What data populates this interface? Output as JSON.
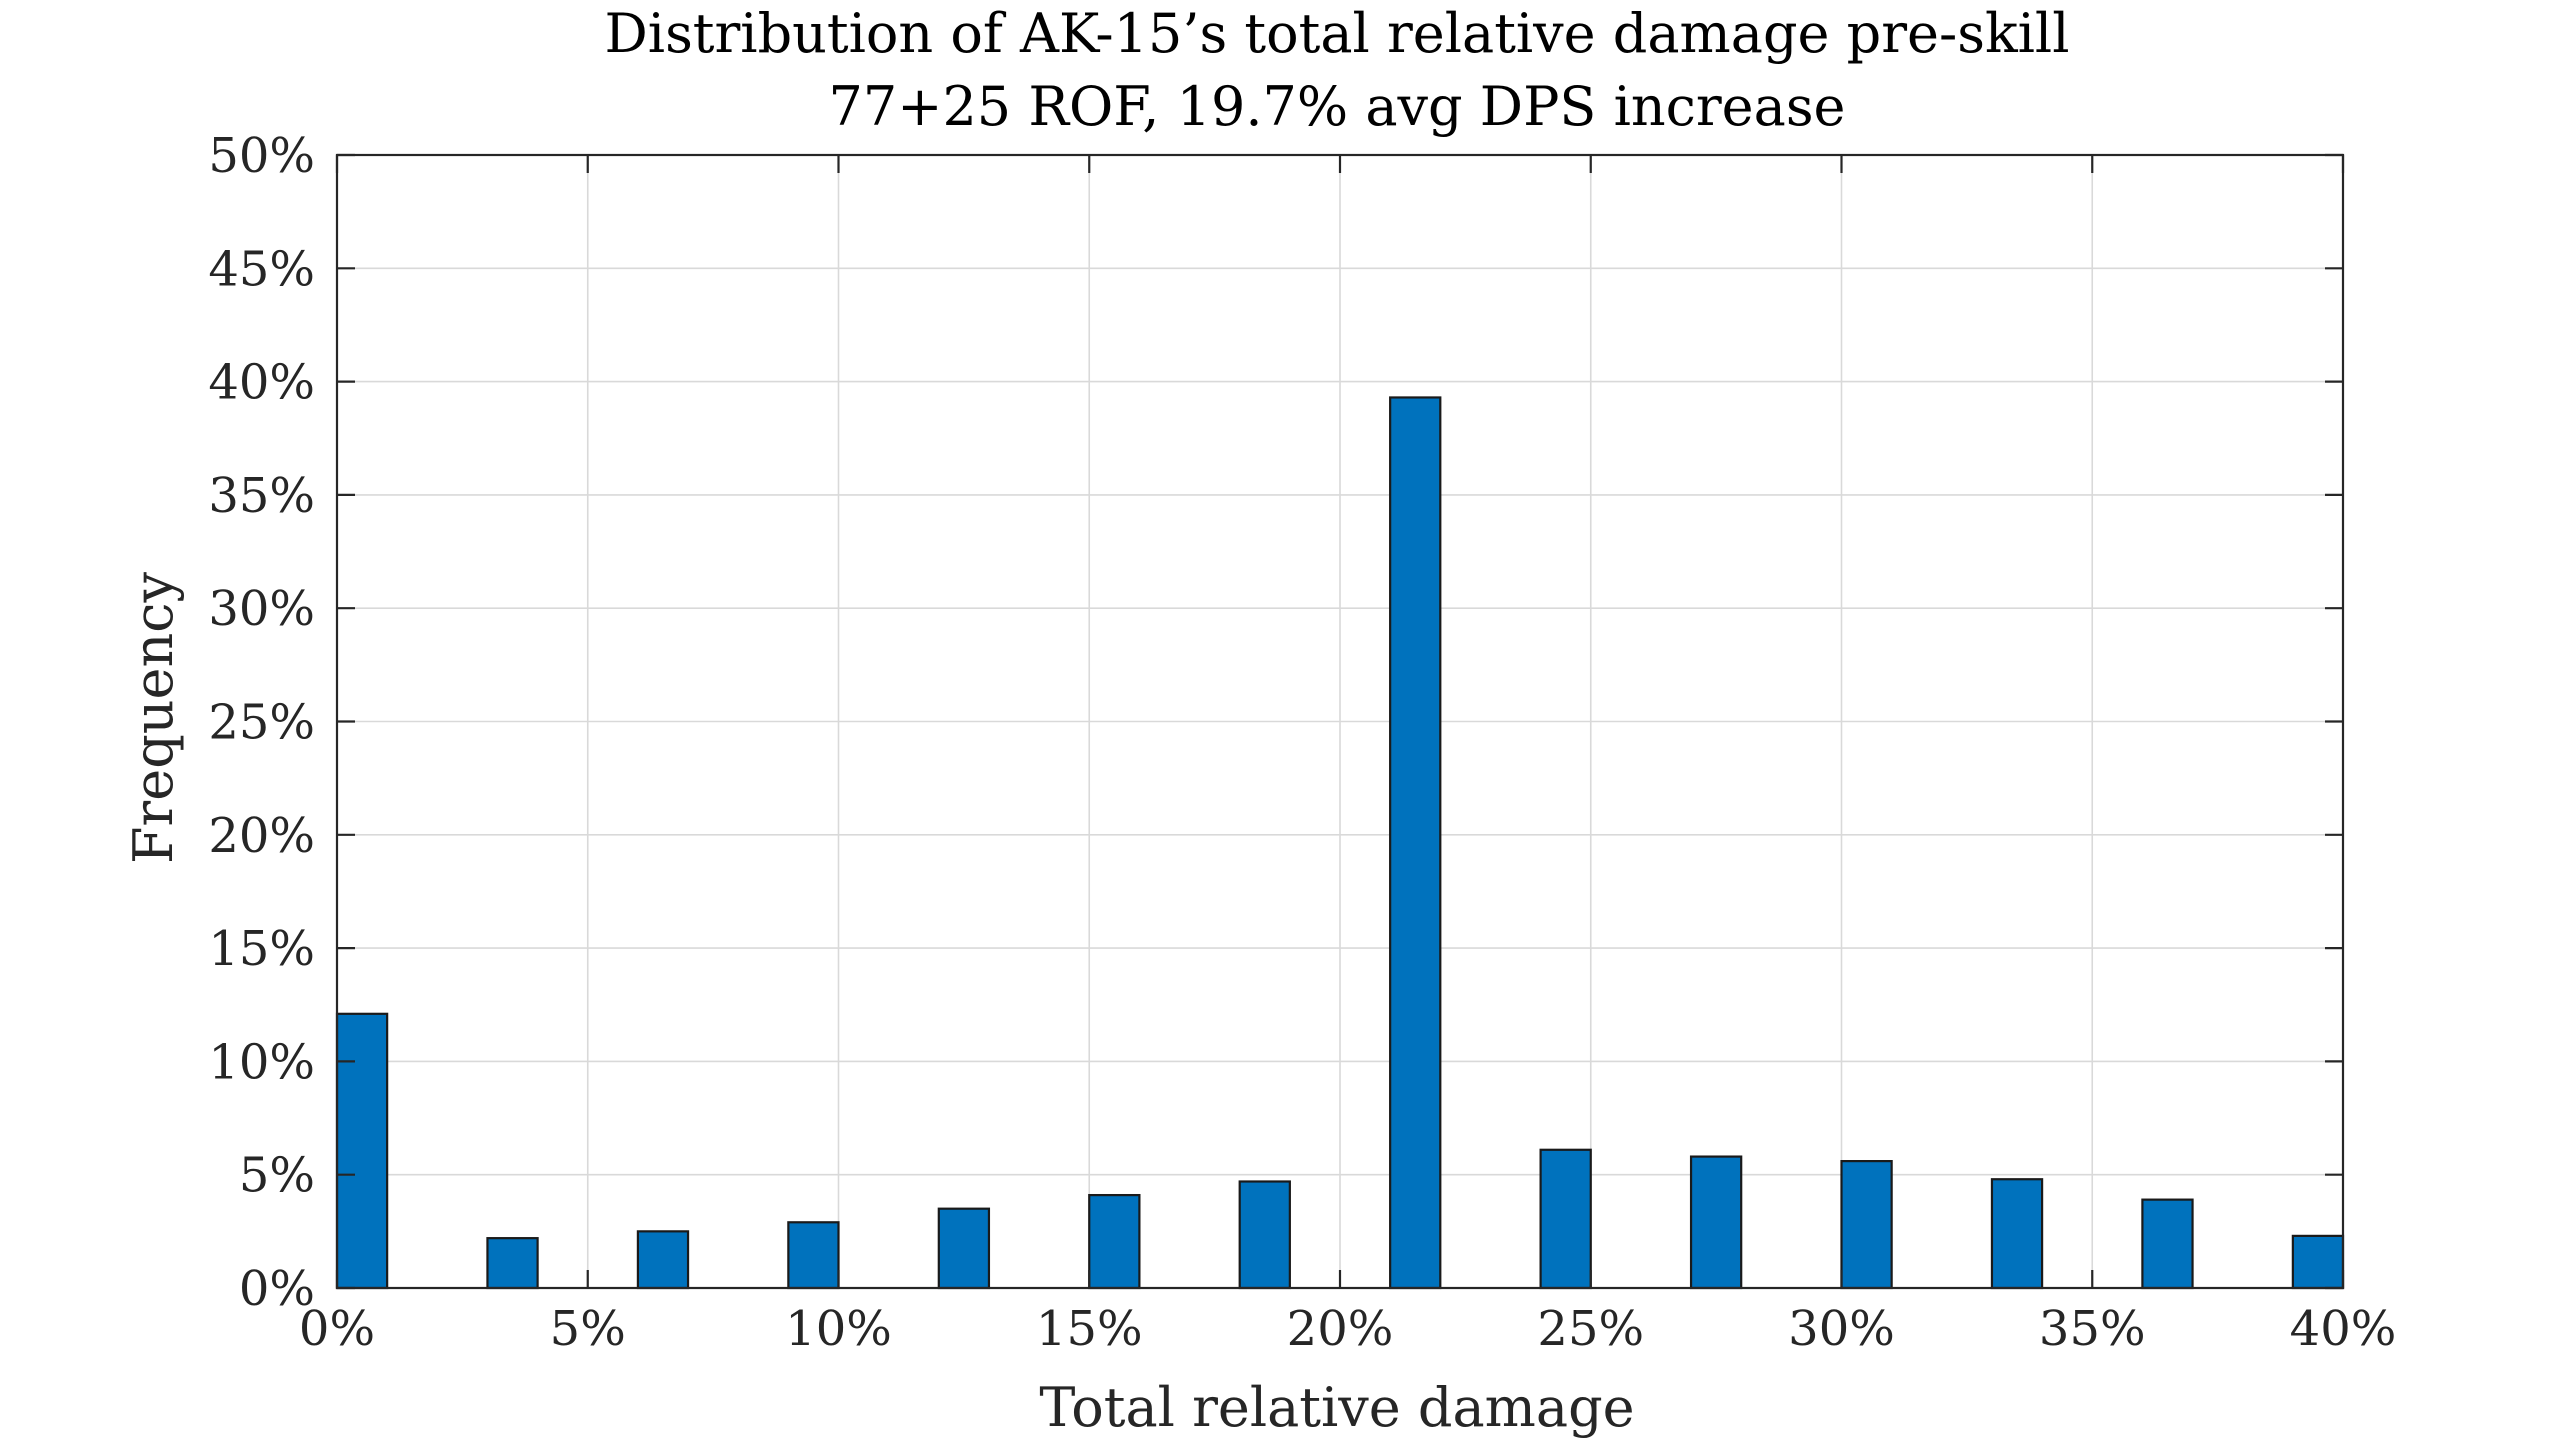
{
  "chart_data": {
    "type": "bar",
    "title": "Distribution of AK-15’s total relative damage pre-skill",
    "subtitle": "77+25 ROF, 19.7% avg DPS increase",
    "xlabel": "Total relative damage",
    "ylabel": "Frequency",
    "xlim": [
      0,
      40
    ],
    "ylim": [
      0,
      50
    ],
    "x_ticks": [
      0,
      5,
      10,
      15,
      20,
      25,
      30,
      35,
      40
    ],
    "x_tick_labels": [
      "0%",
      "5%",
      "10%",
      "15%",
      "20%",
      "25%",
      "30%",
      "35%",
      "40%"
    ],
    "y_ticks": [
      0,
      5,
      10,
      15,
      20,
      25,
      30,
      35,
      40,
      45,
      50
    ],
    "y_tick_labels": [
      "0%",
      "5%",
      "10%",
      "15%",
      "20%",
      "25%",
      "30%",
      "35%",
      "40%",
      "45%",
      "50%"
    ],
    "bar_width": 1,
    "grid": true,
    "bar_color": "#0072BD",
    "bars": [
      {
        "x": 0.5,
        "value": 12.1
      },
      {
        "x": 3.5,
        "value": 2.2
      },
      {
        "x": 6.5,
        "value": 2.5
      },
      {
        "x": 9.5,
        "value": 2.9
      },
      {
        "x": 12.5,
        "value": 3.5
      },
      {
        "x": 15.5,
        "value": 4.1
      },
      {
        "x": 18.5,
        "value": 4.7
      },
      {
        "x": 21.5,
        "value": 39.3
      },
      {
        "x": 24.5,
        "value": 6.1
      },
      {
        "x": 27.5,
        "value": 5.8
      },
      {
        "x": 30.5,
        "value": 5.6
      },
      {
        "x": 33.5,
        "value": 4.8
      },
      {
        "x": 36.5,
        "value": 3.9
      },
      {
        "x": 39.5,
        "value": 2.3
      }
    ]
  }
}
